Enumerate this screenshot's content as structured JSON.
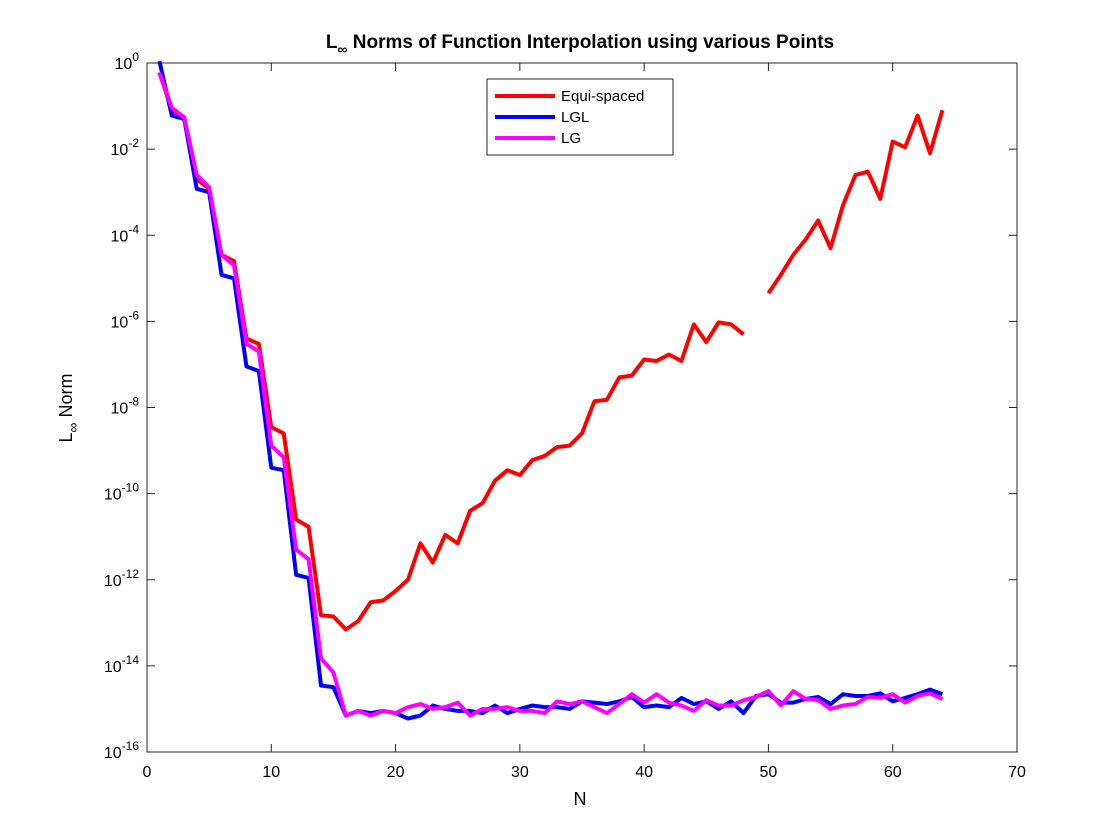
{
  "chart_data": {
    "type": "line",
    "title": {
      "main": "L",
      "sub": "∞",
      "rest": " Norms of Function Interpolation using various Points"
    },
    "xlabel": "N",
    "ylabel": {
      "main": "L",
      "sub": "∞",
      "rest": " Norm"
    },
    "xlim": [
      0,
      70
    ],
    "ylim": [
      1e-16,
      1
    ],
    "yscale": "log",
    "x_ticks": [
      "0",
      "10",
      "20",
      "30",
      "40",
      "50",
      "60",
      "70"
    ],
    "y_ticks": [
      {
        "base": "10",
        "exp": "0"
      },
      {
        "base": "10",
        "exp": "-2"
      },
      {
        "base": "10",
        "exp": "-4"
      },
      {
        "base": "10",
        "exp": "-6"
      },
      {
        "base": "10",
        "exp": "-8"
      },
      {
        "base": "10",
        "exp": "-10"
      },
      {
        "base": "10",
        "exp": "-12"
      },
      {
        "base": "10",
        "exp": "-14"
      },
      {
        "base": "10",
        "exp": "-16"
      }
    ],
    "grid": false,
    "legend_position": "top-center",
    "series": [
      {
        "name": "Equi-spaced",
        "color": "#ff0000",
        "x": [
          1,
          2,
          3,
          4,
          5,
          6,
          7,
          8,
          9,
          10,
          11,
          12,
          13,
          14,
          15,
          16,
          17,
          18,
          19,
          20,
          21,
          22,
          23,
          24,
          25,
          26,
          27,
          28,
          29,
          30,
          31,
          32,
          33,
          34,
          35,
          36,
          37,
          38,
          39,
          40,
          41,
          42,
          43,
          44,
          45,
          46,
          47,
          48,
          null,
          50,
          51,
          52,
          53,
          54,
          55,
          56,
          57,
          58,
          59,
          60,
          61,
          62,
          63,
          64
        ],
        "y": [
          0.6,
          0.08,
          0.05,
          0.002,
          0.0012,
          3.5e-05,
          2.5e-05,
          4e-07,
          3e-07,
          3.5e-09,
          2.5e-09,
          2.5e-11,
          1.7e-11,
          1.5e-13,
          1.4e-13,
          7e-14,
          1.1e-13,
          3e-13,
          3.3e-13,
          5.5e-13,
          1e-12,
          7e-12,
          2.5e-12,
          1.1e-11,
          7e-12,
          4e-11,
          6e-11,
          2e-10,
          3.5e-10,
          2.7e-10,
          6e-10,
          7.5e-10,
          1.2e-09,
          1.3e-09,
          2.5e-09,
          1.4e-08,
          1.5e-08,
          5e-08,
          5.5e-08,
          1.3e-07,
          1.2e-07,
          1.7e-07,
          1.2e-07,
          8.5e-07,
          3.3e-07,
          9.5e-07,
          8.5e-07,
          5e-07,
          null,
          4.5e-06,
          1.2e-05,
          3.5e-05,
          8e-05,
          0.00022,
          5e-05,
          0.0005,
          0.0025,
          0.003,
          0.0007,
          0.015,
          0.011,
          0.06,
          0.008,
          0.08
        ]
      },
      {
        "name": "LGL",
        "color": "#0000ff",
        "x": [
          1,
          2,
          3,
          4,
          5,
          6,
          7,
          8,
          9,
          10,
          11,
          12,
          13,
          14,
          15,
          16,
          17,
          18,
          19,
          20,
          21,
          22,
          23,
          24,
          25,
          26,
          27,
          28,
          29,
          30,
          31,
          32,
          33,
          34,
          35,
          36,
          37,
          38,
          39,
          40,
          41,
          42,
          43,
          44,
          45,
          46,
          47,
          48,
          49,
          50,
          51,
          52,
          53,
          54,
          55,
          56,
          57,
          58,
          59,
          60,
          61,
          62,
          63,
          64
        ],
        "y": [
          1.1,
          0.06,
          0.05,
          0.0012,
          0.001,
          1.2e-05,
          1e-05,
          9e-08,
          7e-08,
          4e-10,
          3.5e-10,
          1.3e-12,
          1.1e-12,
          3.5e-15,
          3.2e-15,
          7e-16,
          9e-16,
          8e-16,
          9e-16,
          8e-16,
          6e-16,
          7e-16,
          1.2e-15,
          1e-15,
          9e-16,
          9e-16,
          8e-16,
          1.2e-15,
          8e-16,
          1e-15,
          1.2e-15,
          1.1e-15,
          1.1e-15,
          1e-15,
          1.5e-15,
          1.4e-15,
          1.3e-15,
          1.5e-15,
          1.9e-15,
          1.1e-15,
          1.2e-15,
          1.1e-15,
          1.8e-15,
          1.3e-15,
          1.5e-15,
          1e-15,
          1.5e-15,
          8e-16,
          2e-15,
          2.2e-15,
          1.4e-15,
          1.4e-15,
          1.7e-15,
          1.9e-15,
          1.3e-15,
          2.2e-15,
          2e-15,
          2e-15,
          2.3e-15,
          1.5e-15,
          1.8e-15,
          2.2e-15,
          2.8e-15,
          2.2e-15
        ]
      },
      {
        "name": "LG",
        "color": "#ff00ff",
        "x": [
          1,
          2,
          3,
          4,
          5,
          6,
          7,
          8,
          9,
          10,
          11,
          12,
          13,
          14,
          15,
          16,
          17,
          18,
          19,
          20,
          21,
          22,
          23,
          24,
          25,
          26,
          27,
          28,
          29,
          30,
          31,
          32,
          33,
          34,
          35,
          36,
          37,
          38,
          39,
          40,
          41,
          42,
          43,
          44,
          45,
          46,
          47,
          48,
          49,
          50,
          51,
          52,
          53,
          54,
          55,
          56,
          57,
          58,
          59,
          60,
          61,
          62,
          63,
          64
        ],
        "y": [
          0.6,
          0.09,
          0.055,
          0.0025,
          0.0013,
          3.5e-05,
          2e-05,
          3e-07,
          2e-07,
          1.3e-09,
          7e-10,
          5e-12,
          3e-12,
          1.5e-14,
          7e-15,
          7e-16,
          9e-16,
          7e-16,
          9e-16,
          8e-16,
          1.1e-15,
          1.3e-15,
          1e-15,
          1.1e-15,
          1.4e-15,
          7e-16,
          1e-15,
          1e-15,
          1.1e-15,
          9e-16,
          9e-16,
          8e-16,
          1.5e-15,
          1.3e-15,
          1.5e-15,
          1.1e-15,
          8e-16,
          1.3e-15,
          2.2e-15,
          1.4e-15,
          2.2e-15,
          1.4e-15,
          1.2e-15,
          9e-16,
          1.6e-15,
          1.2e-15,
          1.2e-15,
          1.6e-15,
          1.9e-15,
          2.6e-15,
          1.2e-15,
          2.6e-15,
          1.7e-15,
          1.6e-15,
          1e-15,
          1.2e-15,
          1.3e-15,
          1.9e-15,
          1.8e-15,
          2.2e-15,
          1.4e-15,
          2e-15,
          2.3e-15,
          1.7e-15
        ]
      }
    ]
  }
}
